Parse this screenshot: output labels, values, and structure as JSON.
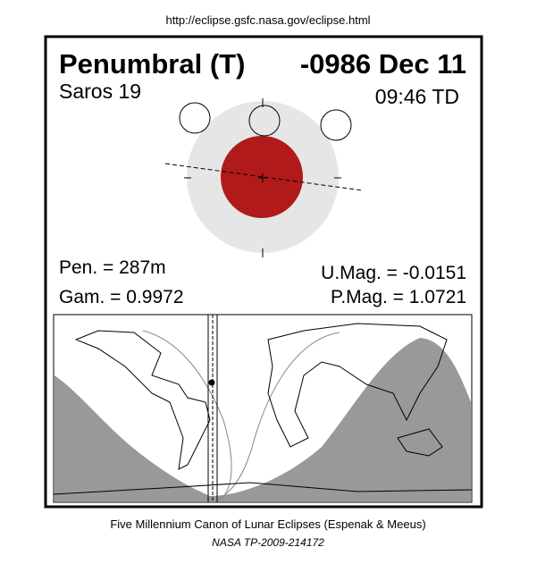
{
  "header": {
    "url": "http://eclipse.gsfc.nasa.gov/eclipse.html",
    "title": "Penumbral (T)",
    "date": "-0986 Dec 11",
    "saros": "Saros  19",
    "time": "09:46 TD"
  },
  "parameters": {
    "pen": "Pen. = 287m",
    "gam": "Gam. = 0.9972",
    "umag": "U.Mag. = -0.0151",
    "pmag": "P.Mag. = 1.0721"
  },
  "footer": {
    "line1": "Five Millennium Canon of Lunar Eclipses (Espenak & Meeus)",
    "line2": "NASA TP-2009-214172"
  }
}
